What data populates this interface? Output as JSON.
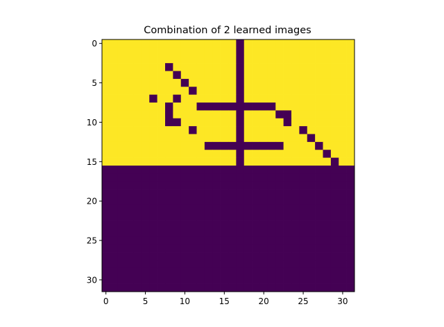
{
  "chart_data": {
    "type": "heatmap",
    "title": "Combination of 2 learned images",
    "xlabel": "",
    "ylabel": "",
    "colormap": "viridis",
    "colors": {
      "low": "#440154",
      "high": "#fde725"
    },
    "xlim": [
      -0.5,
      31.5
    ],
    "ylim": [
      31.5,
      -0.5
    ],
    "x_ticks": [
      0,
      5,
      10,
      15,
      20,
      25,
      30
    ],
    "y_ticks": [
      0,
      5,
      10,
      15,
      20,
      25,
      30
    ],
    "x_tick_labels": [
      "0",
      "5",
      "10",
      "15",
      "20",
      "25",
      "30"
    ],
    "y_tick_labels": [
      "0",
      "5",
      "10",
      "15",
      "20",
      "25",
      "30"
    ],
    "grid": false,
    "legend": "none",
    "rows": [
      "11111111111111111011111111111111",
      "11111111111111111011111111111111",
      "11111111111111111011111111111111",
      "11111111011111111011111111111111",
      "11111111101111111011111111111111",
      "11111111110111111011111111111111",
      "11111111111011111011111111111111",
      "11111101101111111011111111111111",
      "11111111011100000000001111111111",
      "11111111011111111011110011111111",
      "11111111001111111011111011111111",
      "11111111111011111011111110111111",
      "11111111111111111011111111011111",
      "11111111111110000000000111101111",
      "11111111111111111011111111110111",
      "11111111111111111011111111111011",
      "00000000000000000000000000000000",
      "00000000000000000000000000000000",
      "00000000000000000000000000000000",
      "00000000000000000000000000000000",
      "00000000000000000000000000000000",
      "00000000000000000000000000000000",
      "00000000000000000000000000000000",
      "00000000000000000000000000000000",
      "00000000000000000000000000000000",
      "00000000000000000000000000000000",
      "00000000000000000000000000000000",
      "00000000000000000000000000000000",
      "00000000000000000000000000000000",
      "00000000000000000000000000000000",
      "00000000000000000000000000000000",
      "00000000000000000000000000000000"
    ]
  }
}
